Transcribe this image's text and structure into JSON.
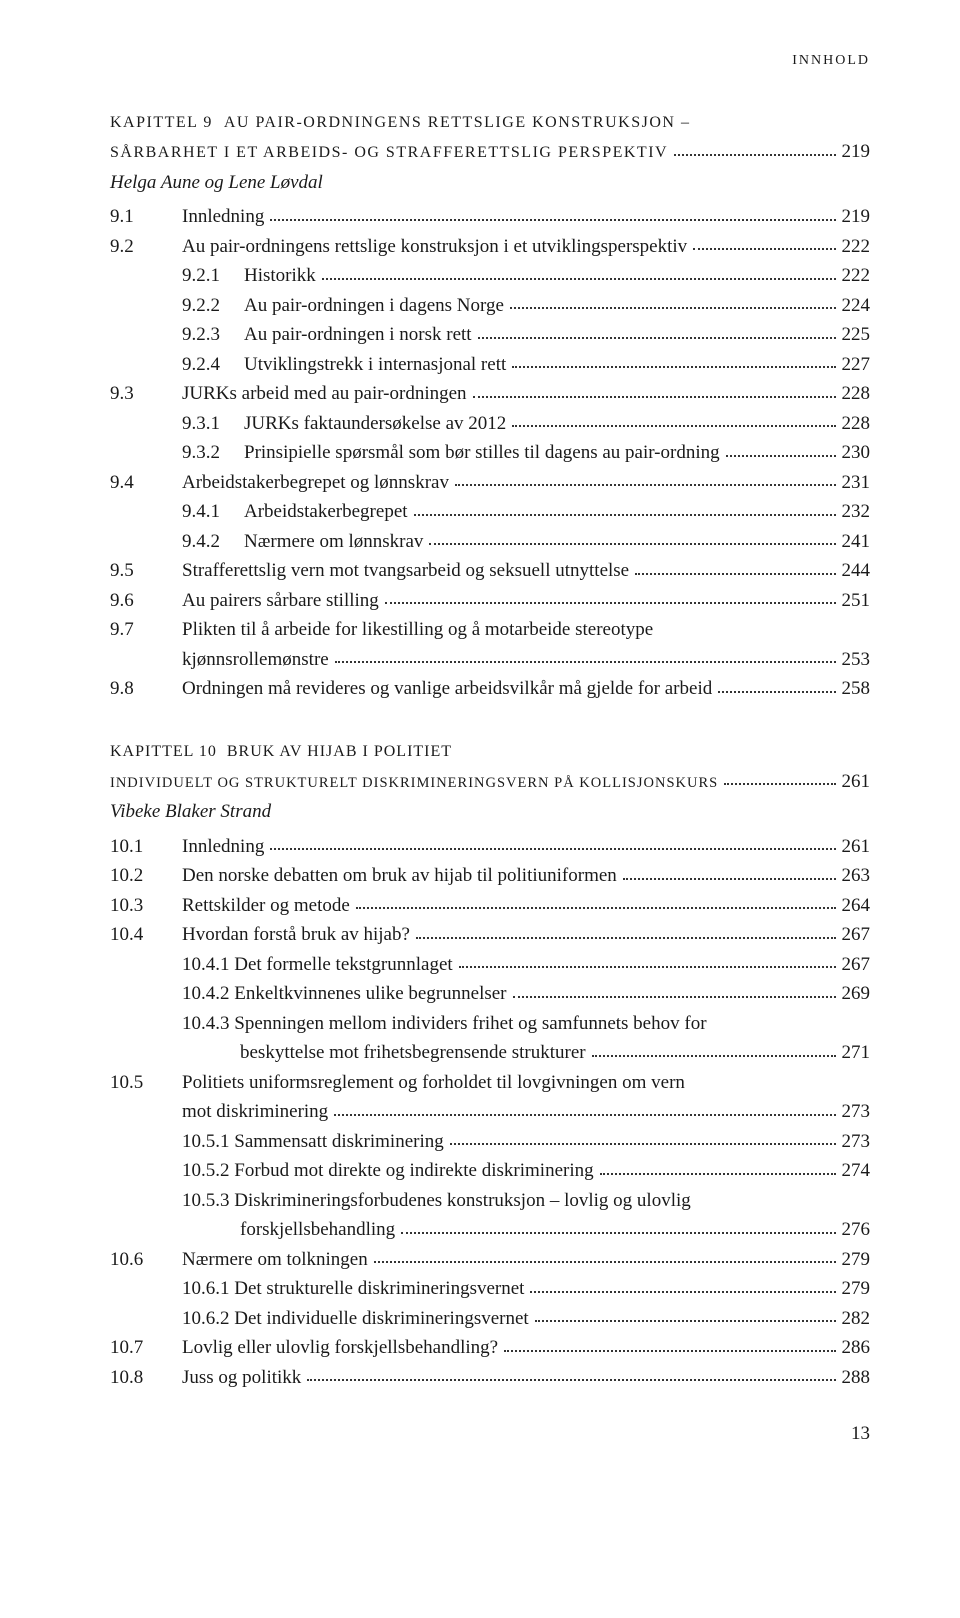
{
  "running_head": "INNHOLD",
  "ch9": {
    "label": "KAPITTEL 9",
    "title": "AU PAIR-ORDNINGENS RETTSLIGE KONSTRUKSJON –",
    "subtitle": "SÅRBARHET I ET ARBEIDS- OG STRAFFERETTSLIG PERSPEKTIV",
    "page": "219",
    "authors": "Helga Aune og Lene Løvdal",
    "entries": [
      {
        "num": "9.1",
        "text": "Innledning",
        "pg": "219",
        "level": 1
      },
      {
        "num": "9.2",
        "text": "Au pair-ordningens rettslige konstruksjon i et utviklingsperspektiv",
        "pg": "222",
        "level": 1
      },
      {
        "num": "9.2.1",
        "text": "Historikk",
        "pg": "222",
        "level": 2
      },
      {
        "num": "9.2.2",
        "text": "Au pair-ordningen i dagens Norge",
        "pg": "224",
        "level": 2
      },
      {
        "num": "9.2.3",
        "text": "Au pair-ordningen i norsk rett",
        "pg": "225",
        "level": 2
      },
      {
        "num": "9.2.4",
        "text": "Utviklingstrekk i internasjonal rett",
        "pg": "227",
        "level": 2
      },
      {
        "num": "9.3",
        "text": "JURKs arbeid med au pair-ordningen",
        "pg": "228",
        "level": 1
      },
      {
        "num": "9.3.1",
        "text": "JURKs faktaundersøkelse av 2012",
        "pg": "228",
        "level": 2
      },
      {
        "num": "9.3.2",
        "text": "Prinsipielle spørsmål som bør stilles til dagens au pair-ordning",
        "pg": "230",
        "level": 2
      },
      {
        "num": "9.4",
        "text": "Arbeidstakerbegrepet og lønnskrav",
        "pg": "231",
        "level": 1
      },
      {
        "num": "9.4.1",
        "text": "Arbeidstakerbegrepet",
        "pg": "232",
        "level": 2
      },
      {
        "num": "9.4.2",
        "text": "Nærmere om lønnskrav",
        "pg": "241",
        "level": 2
      },
      {
        "num": "9.5",
        "text": "Strafferettslig vern mot tvangsarbeid og seksuell utnyttelse",
        "pg": "244",
        "level": 1
      },
      {
        "num": "9.6",
        "text": "Au pairers sårbare stilling",
        "pg": "251",
        "level": 1
      },
      {
        "num": "9.7",
        "text": "Plikten til å arbeide for likestilling og å motarbeide stereotype",
        "pg": "",
        "level": 1,
        "cont": "kjønnsrollemønstre",
        "contpg": "253"
      },
      {
        "num": "9.8",
        "text": "Ordningen må revideres og vanlige arbeidsvilkår må gjelde for arbeid",
        "pg": "258",
        "level": 1
      }
    ]
  },
  "ch10": {
    "label": "KAPITTEL 10",
    "title": "BRUK AV HIJAB I POLITIET",
    "subtitle": "INDIVIDUELT OG STRUKTURELT DISKRIMINERINGSVERN PÅ KOLLISJONSKURS",
    "page": "261",
    "authors": "Vibeke Blaker Strand",
    "entries": [
      {
        "num": "10.1",
        "text": "Innledning",
        "pg": "261",
        "level": 1
      },
      {
        "num": "10.2",
        "text": "Den norske debatten om bruk av hijab til politiuniformen",
        "pg": "263",
        "level": 1
      },
      {
        "num": "10.3",
        "text": "Rettskilder og metode",
        "pg": "264",
        "level": 1
      },
      {
        "num": "10.4",
        "text": "Hvordan forstå bruk av hijab?",
        "pg": "267",
        "level": 1
      },
      {
        "num": "10.4.1",
        "text": "Det formelle tekstgrunnlaget",
        "pg": "267",
        "level": 2,
        "inline": true
      },
      {
        "num": "10.4.2",
        "text": "Enkeltkvinnenes ulike begrunnelser",
        "pg": "269",
        "level": 2,
        "inline": true
      },
      {
        "num": "10.4.3",
        "text": "Spenningen mellom individers frihet og samfunnets behov for",
        "pg": "",
        "level": 2,
        "inline": true,
        "cont": "beskyttelse mot frihetsbegrensende strukturer",
        "contpg": "271"
      },
      {
        "num": "10.5",
        "text": "Politiets uniformsreglement og forholdet til lovgivningen om vern",
        "pg": "",
        "level": 1,
        "cont": "mot diskriminering",
        "contpg": "273"
      },
      {
        "num": "10.5.1",
        "text": "Sammensatt diskriminering",
        "pg": "273",
        "level": 2,
        "inline": true
      },
      {
        "num": "10.5.2",
        "text": "Forbud mot direkte og indirekte diskriminering",
        "pg": "274",
        "level": 2,
        "inline": true
      },
      {
        "num": "10.5.3",
        "text": "Diskrimineringsforbudenes konstruksjon – lovlig og ulovlig",
        "pg": "",
        "level": 2,
        "inline": true,
        "cont": "forskjellsbehandling",
        "contpg": "276"
      },
      {
        "num": "10.6",
        "text": "Nærmere om tolkningen",
        "pg": "279",
        "level": 1
      },
      {
        "num": "10.6.1",
        "text": "Det strukturelle diskrimineringsvernet",
        "pg": "279",
        "level": 2,
        "inline": true
      },
      {
        "num": "10.6.2",
        "text": "Det individuelle diskrimineringsvernet",
        "pg": "282",
        "level": 2,
        "inline": true
      },
      {
        "num": "10.7",
        "text": "Lovlig eller ulovlig forskjellsbehandling?",
        "pg": "286",
        "level": 1
      },
      {
        "num": "10.8",
        "text": "Juss og politikk",
        "pg": "288",
        "level": 1
      }
    ]
  },
  "page_number": "13"
}
